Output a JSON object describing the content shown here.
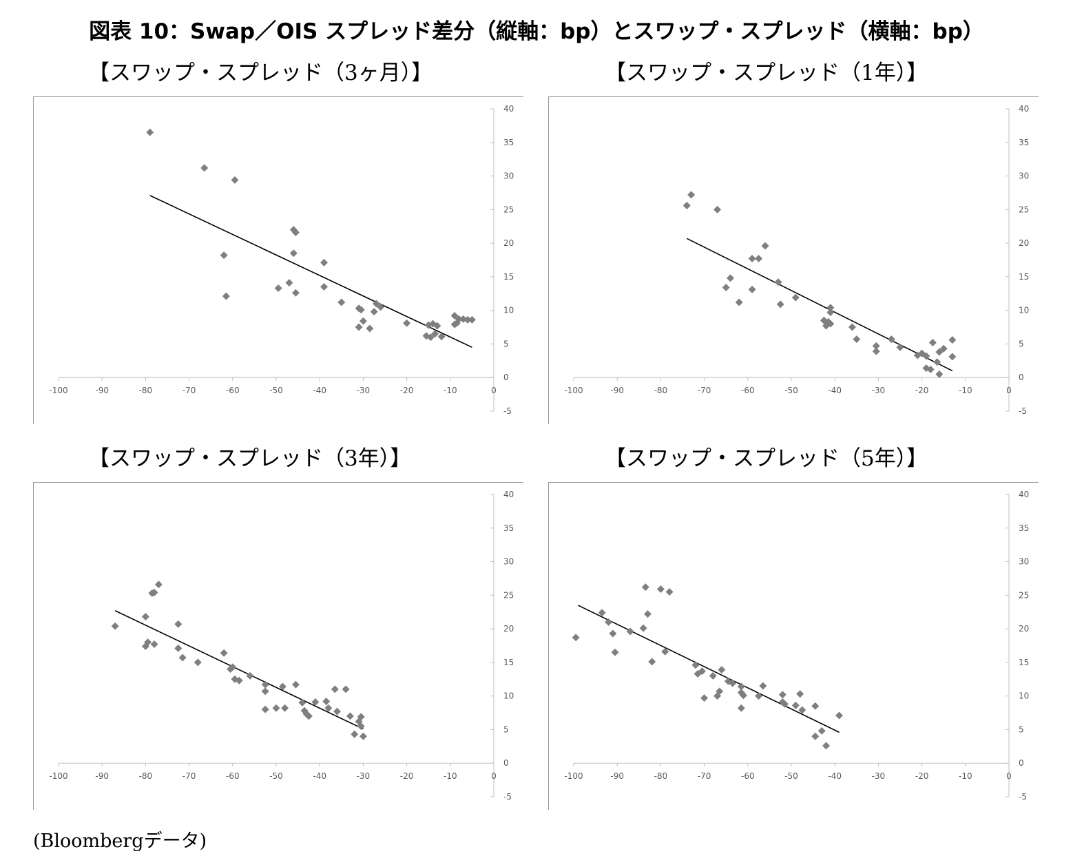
{
  "figure_title": "図表 10：Swap／OIS スプレッド差分（縦軸：bp）とスワップ・スプレッド（横軸：bp）",
  "source_note": "(Bloombergデータ)",
  "chart_data": [
    {
      "type": "scatter",
      "title": "【スワップ・スプレッド（3ヶ月）】",
      "xlim": [
        -100,
        0
      ],
      "ylim": [
        -5,
        40
      ],
      "x_ticks": [
        -100,
        -90,
        -80,
        -70,
        -60,
        -50,
        -40,
        -30,
        -20,
        -10,
        0
      ],
      "y_ticks": [
        -5,
        0,
        5,
        10,
        15,
        20,
        25,
        30,
        35,
        40
      ],
      "trendline": [
        [
          -79,
          27.1
        ],
        [
          -5,
          4.5
        ]
      ],
      "points": [
        [
          -79,
          36.5
        ],
        [
          -66.5,
          31.2
        ],
        [
          -59.5,
          29.4
        ],
        [
          -62,
          18.2
        ],
        [
          -61.5,
          12.1
        ],
        [
          -46,
          22
        ],
        [
          -45.5,
          21.6
        ],
        [
          -46,
          18.5
        ],
        [
          -39,
          17.1
        ],
        [
          -47,
          14.1
        ],
        [
          -49.5,
          13.3
        ],
        [
          -45.5,
          12.6
        ],
        [
          -39,
          13.5
        ],
        [
          -35,
          11.2
        ],
        [
          -31,
          10.3
        ],
        [
          -30.5,
          10.1
        ],
        [
          -27,
          11
        ],
        [
          -26,
          10.5
        ],
        [
          -27.5,
          9.8
        ],
        [
          -30,
          8.4
        ],
        [
          -31,
          7.5
        ],
        [
          -28.5,
          7.3
        ],
        [
          -20,
          8.1
        ],
        [
          -15,
          7.8
        ],
        [
          -14,
          8
        ],
        [
          -13,
          7.7
        ],
        [
          -15.5,
          6.2
        ],
        [
          -14.5,
          6
        ],
        [
          -13.5,
          6.5
        ],
        [
          -12,
          6.1
        ],
        [
          -9,
          9.2
        ],
        [
          -8,
          8.7
        ],
        [
          -8.5,
          8.1
        ],
        [
          -9,
          7.9
        ],
        [
          -7,
          8.7
        ],
        [
          -6,
          8.6
        ],
        [
          -5,
          8.6
        ]
      ]
    },
    {
      "type": "scatter",
      "title": "【スワップ・スプレッド（1年）】",
      "xlim": [
        -100,
        0
      ],
      "ylim": [
        -5,
        40
      ],
      "x_ticks": [
        -100,
        -90,
        -80,
        -70,
        -60,
        -50,
        -40,
        -30,
        -20,
        -10,
        0
      ],
      "y_ticks": [
        -5,
        0,
        5,
        10,
        15,
        20,
        25,
        30,
        35,
        40
      ],
      "trendline": [
        [
          -74,
          20.7
        ],
        [
          -13,
          1
        ]
      ],
      "points": [
        [
          -74,
          25.6
        ],
        [
          -73,
          27.2
        ],
        [
          -67,
          25
        ],
        [
          -56,
          19.6
        ],
        [
          -59,
          17.7
        ],
        [
          -57.5,
          17.7
        ],
        [
          -64,
          14.8
        ],
        [
          -65,
          13.4
        ],
        [
          -62,
          11.2
        ],
        [
          -59,
          13.1
        ],
        [
          -53,
          14.2
        ],
        [
          -52.5,
          10.9
        ],
        [
          -49,
          11.9
        ],
        [
          -41,
          10.4
        ],
        [
          -41,
          9.7
        ],
        [
          -42.5,
          8.5
        ],
        [
          -41.5,
          8.3
        ],
        [
          -41,
          8
        ],
        [
          -42,
          7.7
        ],
        [
          -36,
          7.5
        ],
        [
          -35,
          5.7
        ],
        [
          -30.5,
          4.7
        ],
        [
          -30.5,
          3.9
        ],
        [
          -27,
          5.7
        ],
        [
          -25,
          4.5
        ],
        [
          -21,
          3.3
        ],
        [
          -20,
          3.6
        ],
        [
          -19,
          3.2
        ],
        [
          -17.5,
          5.2
        ],
        [
          -16,
          3.8
        ],
        [
          -15,
          4.3
        ],
        [
          -13,
          5.6
        ],
        [
          -13,
          3.1
        ],
        [
          -16.5,
          2.3
        ],
        [
          -19,
          1.4
        ],
        [
          -18,
          1.2
        ],
        [
          -16,
          0.5
        ]
      ]
    },
    {
      "type": "scatter",
      "title": "【スワップ・スプレッド（3年）】",
      "xlim": [
        -100,
        0
      ],
      "ylim": [
        -5,
        40
      ],
      "x_ticks": [
        -100,
        -90,
        -80,
        -70,
        -60,
        -50,
        -40,
        -30,
        -20,
        -10,
        0
      ],
      "y_ticks": [
        -5,
        0,
        5,
        10,
        15,
        20,
        25,
        30,
        35,
        40
      ],
      "trendline": [
        [
          -87,
          22.7
        ],
        [
          -30,
          5.1
        ]
      ],
      "points": [
        [
          -87,
          20.4
        ],
        [
          -80,
          21.8
        ],
        [
          -78.5,
          25.3
        ],
        [
          -78,
          25.4
        ],
        [
          -77,
          26.6
        ],
        [
          -72.5,
          20.7
        ],
        [
          -80,
          17.4
        ],
        [
          -79.5,
          18
        ],
        [
          -78,
          17.7
        ],
        [
          -72.5,
          17.1
        ],
        [
          -71.5,
          15.7
        ],
        [
          -68,
          15
        ],
        [
          -62,
          16.4
        ],
        [
          -60.5,
          14
        ],
        [
          -60,
          14.3
        ],
        [
          -59.5,
          12.5
        ],
        [
          -58.5,
          12.3
        ],
        [
          -56,
          13
        ],
        [
          -52.5,
          11.7
        ],
        [
          -52.5,
          10.7
        ],
        [
          -52.5,
          8
        ],
        [
          -50,
          8.2
        ],
        [
          -48.5,
          11.4
        ],
        [
          -48,
          8.2
        ],
        [
          -45.5,
          11.7
        ],
        [
          -44,
          9
        ],
        [
          -43.5,
          7.8
        ],
        [
          -43,
          7.3
        ],
        [
          -42.5,
          7
        ],
        [
          -41,
          9.1
        ],
        [
          -38.5,
          9.2
        ],
        [
          -38,
          8.2
        ],
        [
          -36.5,
          11
        ],
        [
          -36,
          7.7
        ],
        [
          -34,
          11
        ],
        [
          -33,
          7
        ],
        [
          -32,
          4.3
        ],
        [
          -31,
          6.2
        ],
        [
          -30.5,
          6.9
        ],
        [
          -30.5,
          5.5
        ],
        [
          -30,
          4
        ]
      ]
    },
    {
      "type": "scatter",
      "title": "【スワップ・スプレッド（5年）】",
      "xlim": [
        -100,
        0
      ],
      "ylim": [
        -5,
        40
      ],
      "x_ticks": [
        -100,
        -90,
        -80,
        -70,
        -60,
        -50,
        -40,
        -30,
        -20,
        -10,
        0
      ],
      "y_ticks": [
        -5,
        0,
        5,
        10,
        15,
        20,
        25,
        30,
        35,
        40
      ],
      "trendline": [
        [
          -99,
          23.5
        ],
        [
          -39,
          4.6
        ]
      ],
      "points": [
        [
          -99.5,
          18.7
        ],
        [
          -93.5,
          22.4
        ],
        [
          -92,
          21
        ],
        [
          -91,
          19.3
        ],
        [
          -90.5,
          16.5
        ],
        [
          -87,
          19.6
        ],
        [
          -84,
          20.1
        ],
        [
          -83.5,
          26.2
        ],
        [
          -83,
          22.2
        ],
        [
          -82,
          15.1
        ],
        [
          -80,
          25.9
        ],
        [
          -79,
          16.6
        ],
        [
          -78,
          25.5
        ],
        [
          -72,
          14.6
        ],
        [
          -71.5,
          13.3
        ],
        [
          -70.5,
          13.7
        ],
        [
          -70,
          9.7
        ],
        [
          -68,
          13
        ],
        [
          -67,
          10
        ],
        [
          -66.5,
          10.7
        ],
        [
          -66,
          13.9
        ],
        [
          -64.5,
          12.2
        ],
        [
          -63.5,
          11.9
        ],
        [
          -61.5,
          11.4
        ],
        [
          -61.5,
          10.5
        ],
        [
          -61.5,
          8.2
        ],
        [
          -61,
          10.1
        ],
        [
          -57.5,
          10
        ],
        [
          -56.5,
          11.5
        ],
        [
          -52,
          10.2
        ],
        [
          -52,
          9.1
        ],
        [
          -51.5,
          8.8
        ],
        [
          -49,
          8.6
        ],
        [
          -48,
          10.3
        ],
        [
          -47.5,
          7.9
        ],
        [
          -44.5,
          8.5
        ],
        [
          -44.5,
          4
        ],
        [
          -43,
          4.8
        ],
        [
          -42,
          2.6
        ],
        [
          -39,
          7.1
        ]
      ]
    }
  ]
}
